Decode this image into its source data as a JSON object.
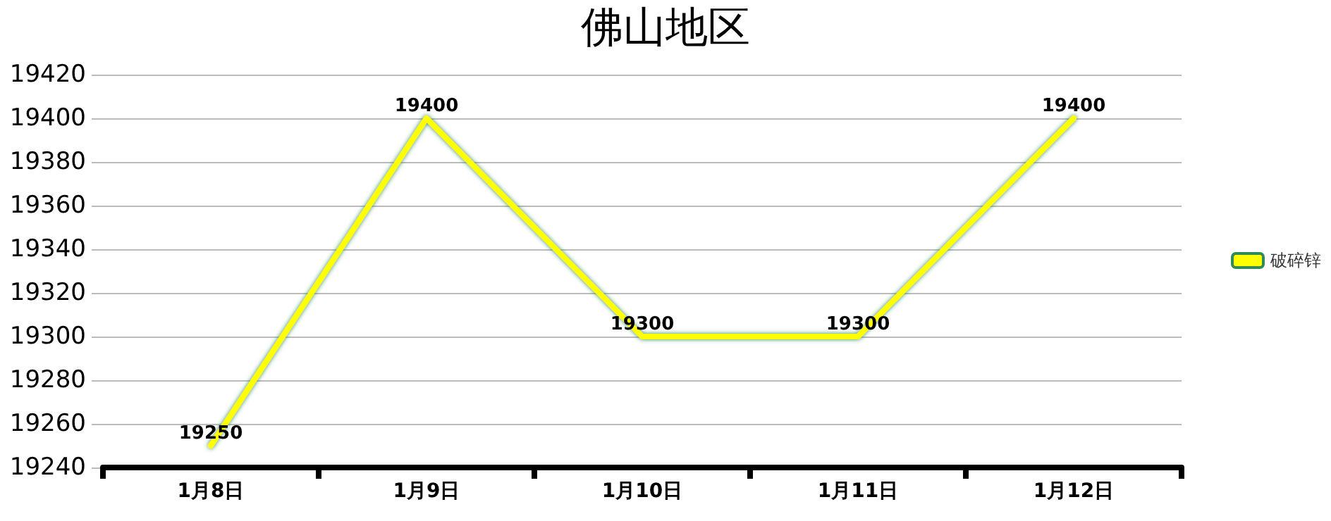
{
  "chart_data": {
    "type": "line",
    "title": "佛山地区",
    "categories": [
      "1月8日",
      "1月9日",
      "1月10日",
      "1月11日",
      "1月12日"
    ],
    "series": [
      {
        "name": "破碎锌",
        "color": "#ffff00",
        "values": [
          19250,
          19400,
          19300,
          19300,
          19400
        ]
      }
    ],
    "ylim": [
      19240,
      19420
    ],
    "yticks": [
      19240,
      19260,
      19280,
      19300,
      19320,
      19340,
      19360,
      19380,
      19400,
      19420
    ],
    "grid": "y",
    "legend": "right",
    "marker": "none",
    "data_labels": true,
    "line_style": "solid"
  }
}
